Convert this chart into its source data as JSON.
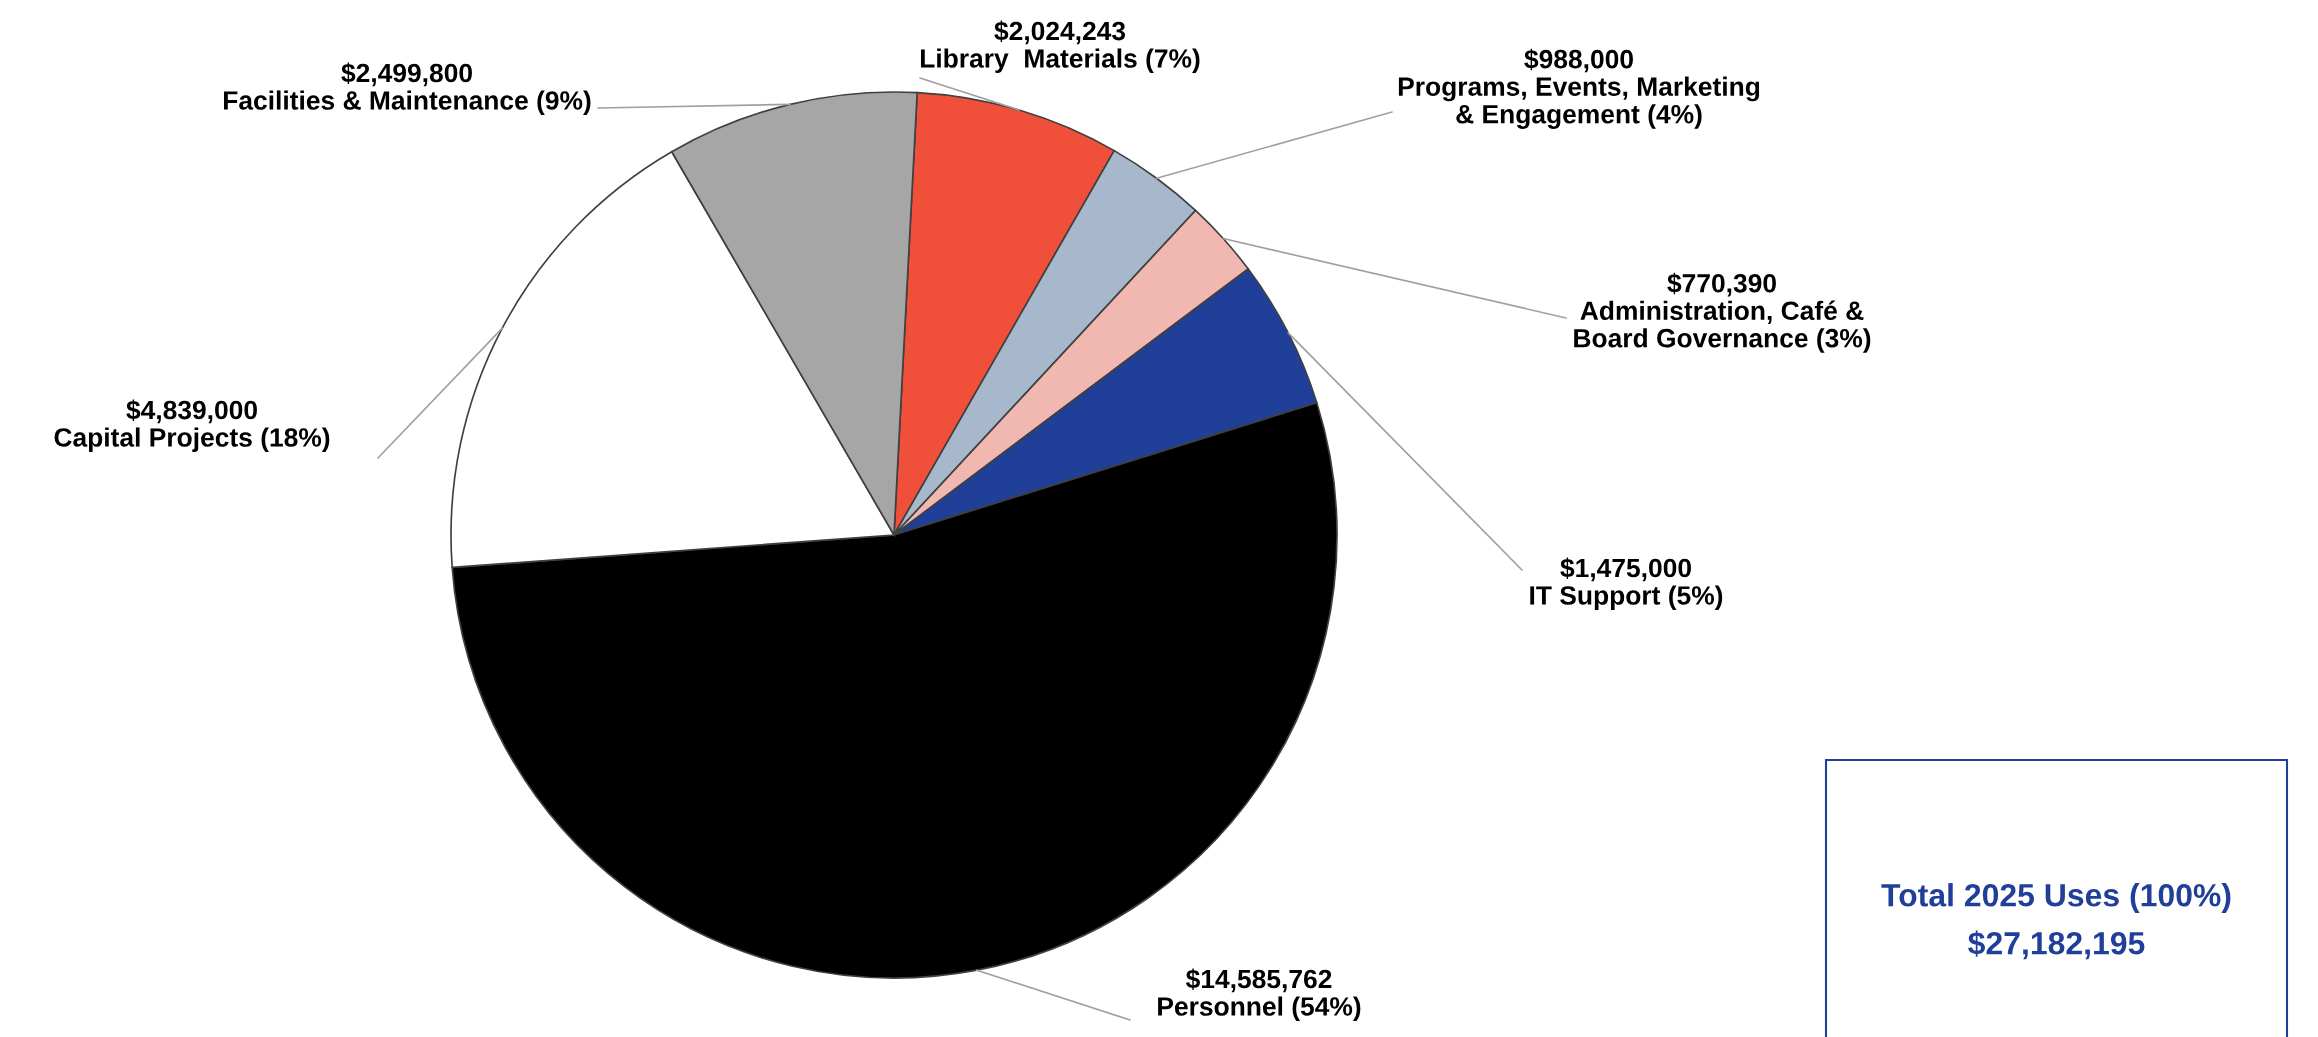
{
  "chart_data": {
    "type": "pie",
    "categories": [
      "Library  Materials (7%)",
      "Programs, Events, Marketing\n& Engagement (4%)",
      "Administration, Café &\nBoard Governance (3%)",
      "IT Support (5%)",
      "Personnel (54%)",
      "Capital Projects (18%)",
      "Facilities & Maintenance (9%)"
    ],
    "values": [
      2024243,
      988000,
      770390,
      1475000,
      14585762,
      4839000,
      2499800
    ],
    "colors": [
      "#f0503a",
      "#a8b8cc",
      "#f0b8b0",
      "#1f3f99",
      "#000000",
      "#ffffff",
      "#a6a6a6"
    ],
    "value_labels": [
      "$2,024,243",
      "$988,000",
      "$770,390",
      "$1,475,000",
      "$14,585,762",
      "$4,839,000",
      "$2,499,800"
    ],
    "annotations": [
      "Total 2025 Uses (100%)",
      "$27,182,195"
    ]
  }
}
